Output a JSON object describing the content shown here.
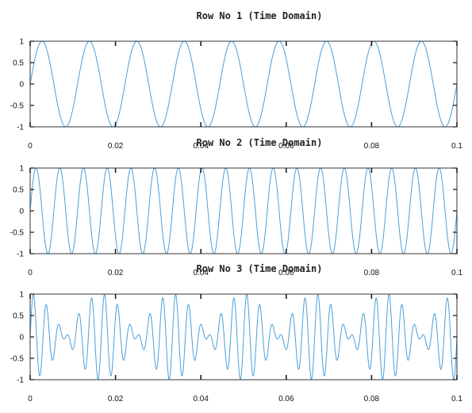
{
  "chart_data": [
    {
      "type": "line",
      "title": "Row No 1 (Time Domain)",
      "xlabel": "",
      "ylabel": "",
      "xlim": [
        0,
        0.1
      ],
      "ylim": [
        -1,
        1
      ],
      "x_ticks": [
        0,
        0.02,
        0.04,
        0.06,
        0.08,
        0.1
      ],
      "x_tick_labels": [
        "0",
        "0.02",
        "0.04",
        "0.06",
        "0.08",
        "0.1"
      ],
      "y_ticks": [
        1,
        0.5,
        0,
        -0.5,
        -1
      ],
      "y_tick_labels": [
        "1",
        "0.5",
        "0",
        "-0.5",
        "-1"
      ],
      "grid": false,
      "series": [
        {
          "components": [
            {
              "amplitude": 1,
              "frequency_hz": 90
            }
          ],
          "x_range": [
            0,
            0.1
          ],
          "color": "#4a9fd8"
        }
      ]
    },
    {
      "type": "line",
      "title": "Row No 2 (Time Domain)",
      "xlabel": "",
      "ylabel": "",
      "xlim": [
        0,
        0.1
      ],
      "ylim": [
        -1,
        1
      ],
      "x_ticks": [
        0,
        0.02,
        0.04,
        0.06,
        0.08,
        0.1
      ],
      "x_tick_labels": [
        "0",
        "0.02",
        "0.04",
        "0.06",
        "0.08",
        "0.1"
      ],
      "y_ticks": [
        1,
        0.5,
        0,
        -0.5,
        -1
      ],
      "y_tick_labels": [
        "1",
        "0.5",
        "0",
        "-0.5",
        "-1"
      ],
      "grid": false,
      "series": [
        {
          "components": [
            {
              "amplitude": 1,
              "frequency_hz": 180
            }
          ],
          "x_range": [
            0,
            0.1
          ],
          "color": "#4a9fd8"
        }
      ]
    },
    {
      "type": "line",
      "title": "Row No 3 (Time Domain)",
      "xlabel": "",
      "ylabel": "",
      "xlim": [
        0,
        0.1
      ],
      "ylim": [
        -1,
        1
      ],
      "x_ticks": [
        0,
        0.02,
        0.04,
        0.06,
        0.08,
        0.1
      ],
      "x_tick_labels": [
        "0",
        "0.02",
        "0.04",
        "0.06",
        "0.08",
        "0.1"
      ],
      "y_ticks": [
        1,
        0.5,
        0,
        -0.5,
        -1
      ],
      "y_tick_labels": [
        "1",
        "0.5",
        "0",
        "-0.5",
        "-1"
      ],
      "grid": false,
      "series": [
        {
          "components": [
            {
              "amplitude": 0.5,
              "frequency_hz": 360
            },
            {
              "amplitude": 0.5,
              "frequency_hz": 300
            }
          ],
          "x_range": [
            0,
            0.1
          ],
          "color": "#4a9fd8"
        }
      ]
    }
  ],
  "style": {
    "line_color": "#4a9fd8",
    "axis_color": "#333333",
    "tick_label_color": "#111111"
  }
}
